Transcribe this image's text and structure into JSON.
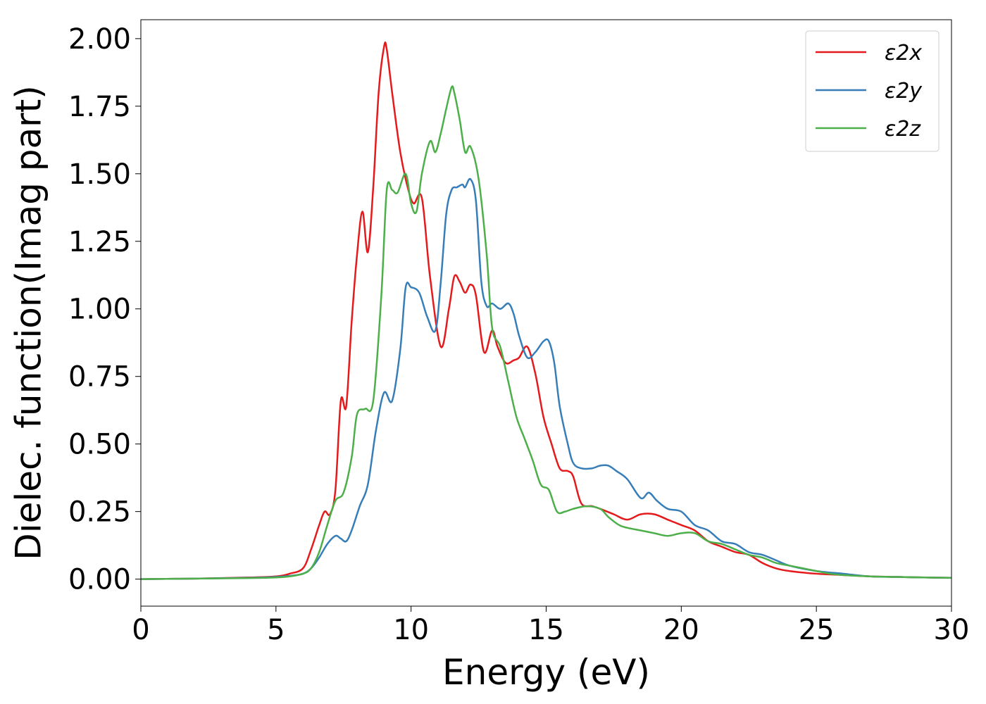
{
  "chart_data": {
    "type": "line",
    "title": "",
    "xlabel": "Energy (eV)",
    "ylabel": "Dielec. function(Imag part)",
    "xlim": [
      0,
      30
    ],
    "ylim": [
      -0.1,
      2.07
    ],
    "xticks": [
      0,
      5,
      10,
      15,
      20,
      25,
      30
    ],
    "xtick_labels": [
      "0",
      "5",
      "10",
      "15",
      "20",
      "25",
      "30"
    ],
    "yticks": [
      0.0,
      0.25,
      0.5,
      0.75,
      1.0,
      1.25,
      1.5,
      1.75,
      2.0
    ],
    "ytick_labels": [
      "0.00",
      "0.25",
      "0.50",
      "0.75",
      "1.00",
      "1.25",
      "1.50",
      "1.75",
      "2.00"
    ],
    "grid": false,
    "legend_position": "top-right",
    "series": [
      {
        "name": "ε2x",
        "color": "#e41a1c",
        "x": [
          0,
          2,
          4,
          5,
          5.5,
          6.0,
          6.3,
          6.6,
          6.8,
          7.0,
          7.2,
          7.4,
          7.6,
          7.8,
          8.0,
          8.2,
          8.4,
          8.6,
          8.8,
          9.0,
          9.1,
          9.3,
          9.6,
          9.9,
          10.1,
          10.4,
          10.7,
          11.1,
          11.4,
          11.6,
          11.8,
          12.0,
          12.2,
          12.4,
          12.7,
          13.0,
          13.2,
          13.5,
          13.8,
          14.0,
          14.3,
          14.6,
          14.9,
          15.2,
          15.5,
          15.8,
          16.0,
          16.3,
          16.7,
          17.0,
          17.5,
          18.0,
          18.5,
          19.0,
          19.5,
          20.0,
          20.5,
          21.0,
          21.5,
          22.0,
          22.5,
          23.0,
          23.5,
          24.0,
          25.0,
          26.0,
          27.0,
          28.0,
          29.0,
          30.0
        ],
        "y": [
          0.0,
          0.002,
          0.006,
          0.01,
          0.02,
          0.04,
          0.11,
          0.2,
          0.25,
          0.24,
          0.33,
          0.66,
          0.64,
          0.95,
          1.2,
          1.36,
          1.21,
          1.45,
          1.8,
          1.97,
          1.96,
          1.8,
          1.58,
          1.44,
          1.39,
          1.41,
          1.12,
          0.86,
          1.0,
          1.12,
          1.1,
          1.06,
          1.09,
          1.05,
          0.84,
          0.92,
          0.86,
          0.8,
          0.81,
          0.82,
          0.86,
          0.76,
          0.6,
          0.5,
          0.41,
          0.4,
          0.38,
          0.28,
          0.27,
          0.26,
          0.24,
          0.22,
          0.24,
          0.24,
          0.22,
          0.2,
          0.18,
          0.14,
          0.12,
          0.1,
          0.09,
          0.06,
          0.04,
          0.03,
          0.02,
          0.015,
          0.01,
          0.008,
          0.006,
          0.005
        ]
      },
      {
        "name": "ε2y",
        "color": "#377eb8",
        "x": [
          0,
          2,
          4,
          5,
          5.5,
          6.0,
          6.3,
          6.6,
          6.9,
          7.2,
          7.4,
          7.6,
          7.8,
          8.1,
          8.4,
          8.7,
          9.0,
          9.3,
          9.6,
          9.8,
          10.0,
          10.3,
          10.6,
          10.9,
          11.1,
          11.3,
          11.5,
          11.7,
          11.9,
          12.0,
          12.2,
          12.4,
          12.6,
          12.8,
          13.0,
          13.3,
          13.6,
          13.8,
          14.0,
          14.3,
          14.6,
          14.9,
          15.1,
          15.3,
          15.5,
          15.8,
          16.0,
          16.3,
          16.7,
          17.0,
          17.3,
          17.6,
          18.0,
          18.5,
          18.8,
          19.1,
          19.5,
          20.0,
          20.5,
          21.0,
          21.5,
          22.0,
          22.5,
          23.0,
          23.5,
          24.0,
          25.0,
          26.0,
          27.0,
          28.0,
          29.0,
          30.0
        ],
        "y": [
          0.0,
          0.002,
          0.005,
          0.008,
          0.012,
          0.02,
          0.04,
          0.08,
          0.13,
          0.16,
          0.15,
          0.14,
          0.18,
          0.27,
          0.35,
          0.55,
          0.69,
          0.66,
          0.85,
          1.08,
          1.08,
          1.06,
          0.97,
          0.92,
          1.1,
          1.35,
          1.44,
          1.45,
          1.46,
          1.45,
          1.48,
          1.4,
          1.1,
          1.01,
          1.02,
          1.0,
          1.02,
          0.98,
          0.9,
          0.82,
          0.84,
          0.88,
          0.88,
          0.8,
          0.64,
          0.5,
          0.43,
          0.41,
          0.41,
          0.42,
          0.42,
          0.4,
          0.37,
          0.3,
          0.32,
          0.29,
          0.26,
          0.25,
          0.2,
          0.18,
          0.14,
          0.13,
          0.1,
          0.09,
          0.07,
          0.05,
          0.03,
          0.02,
          0.01,
          0.008,
          0.006,
          0.005
        ]
      },
      {
        "name": "ε2z",
        "color": "#4daf4a",
        "x": [
          0,
          2,
          4,
          5,
          5.5,
          6.0,
          6.3,
          6.6,
          6.9,
          7.2,
          7.5,
          7.8,
          8.0,
          8.3,
          8.6,
          8.9,
          9.1,
          9.3,
          9.5,
          9.8,
          10.0,
          10.2,
          10.4,
          10.7,
          10.9,
          11.1,
          11.3,
          11.5,
          11.6,
          11.8,
          12.0,
          12.2,
          12.5,
          12.8,
          13.0,
          13.3,
          13.6,
          13.9,
          14.2,
          14.5,
          14.8,
          15.1,
          15.4,
          15.7,
          16.0,
          16.5,
          17.0,
          17.3,
          17.7,
          18.0,
          18.5,
          19.0,
          19.5,
          20.0,
          20.5,
          21.0,
          21.5,
          22.0,
          22.5,
          23.0,
          23.5,
          24.0,
          25.0,
          25.5,
          26.0,
          27.0,
          28.0,
          29.0,
          30.0
        ],
        "y": [
          0.0,
          0.002,
          0.004,
          0.006,
          0.01,
          0.02,
          0.04,
          0.1,
          0.2,
          0.29,
          0.32,
          0.45,
          0.61,
          0.63,
          0.66,
          1.05,
          1.44,
          1.44,
          1.43,
          1.5,
          1.39,
          1.36,
          1.5,
          1.62,
          1.58,
          1.65,
          1.74,
          1.82,
          1.8,
          1.7,
          1.58,
          1.6,
          1.48,
          1.2,
          0.93,
          0.86,
          0.73,
          0.6,
          0.52,
          0.44,
          0.35,
          0.33,
          0.25,
          0.25,
          0.26,
          0.27,
          0.26,
          0.23,
          0.2,
          0.19,
          0.18,
          0.17,
          0.16,
          0.17,
          0.17,
          0.14,
          0.13,
          0.11,
          0.09,
          0.08,
          0.06,
          0.05,
          0.03,
          0.02,
          0.015,
          0.01,
          0.008,
          0.006,
          0.005
        ]
      }
    ]
  }
}
